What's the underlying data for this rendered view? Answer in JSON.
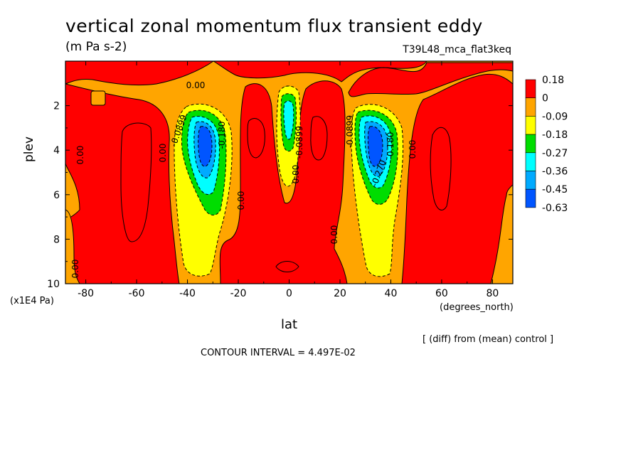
{
  "chart_data": {
    "type": "heatmap",
    "title": "vertical zonal momentum flux transient eddy",
    "subtitle": "(m Pa s-2)",
    "run_label": "T39L48_mca_flat3keq",
    "xlabel": "lat",
    "x_unit": "(degrees_north)",
    "ylabel": "plev",
    "y_unit": "(x1E4 Pa)",
    "xlim": [
      -88,
      88
    ],
    "ylim": [
      10,
      0
    ],
    "x_ticks": [
      -80,
      -60,
      -40,
      -20,
      0,
      20,
      40,
      60,
      80
    ],
    "y_ticks": [
      2,
      4,
      6,
      8,
      10
    ],
    "diff_note": "[ (diff) from (mean) control ]",
    "contour_interval": "CONTOUR INTERVAL = 4.497E-02",
    "contour_labels": [
      "0.00",
      "0.00",
      "0.00",
      "0.00",
      "0.00",
      "0.00",
      "0.00",
      "-0.0899",
      "-0.180",
      "-0.0899",
      "-0.0899",
      "-0.180",
      "-0.270",
      "0.00"
    ],
    "legend": {
      "placement": "right",
      "levels": [
        "0.18",
        "0",
        "-0.09",
        "-0.18",
        "-0.27",
        "-0.36",
        "-0.45",
        "-0.63"
      ],
      "colors": [
        "#ff0000",
        "#ffa500",
        "#ffff00",
        "#00dd00",
        "#00ffff",
        "#00aaff",
        "#0055ff"
      ]
    },
    "features": [
      {
        "name": "southern negative core",
        "lat": -35,
        "plev": 3.8,
        "value": -0.63
      },
      {
        "name": "equatorial negative core",
        "lat": 0,
        "plev": 3.0,
        "value": -0.3
      },
      {
        "name": "northern negative core",
        "lat": 33,
        "plev": 3.8,
        "value": -0.63
      }
    ]
  }
}
